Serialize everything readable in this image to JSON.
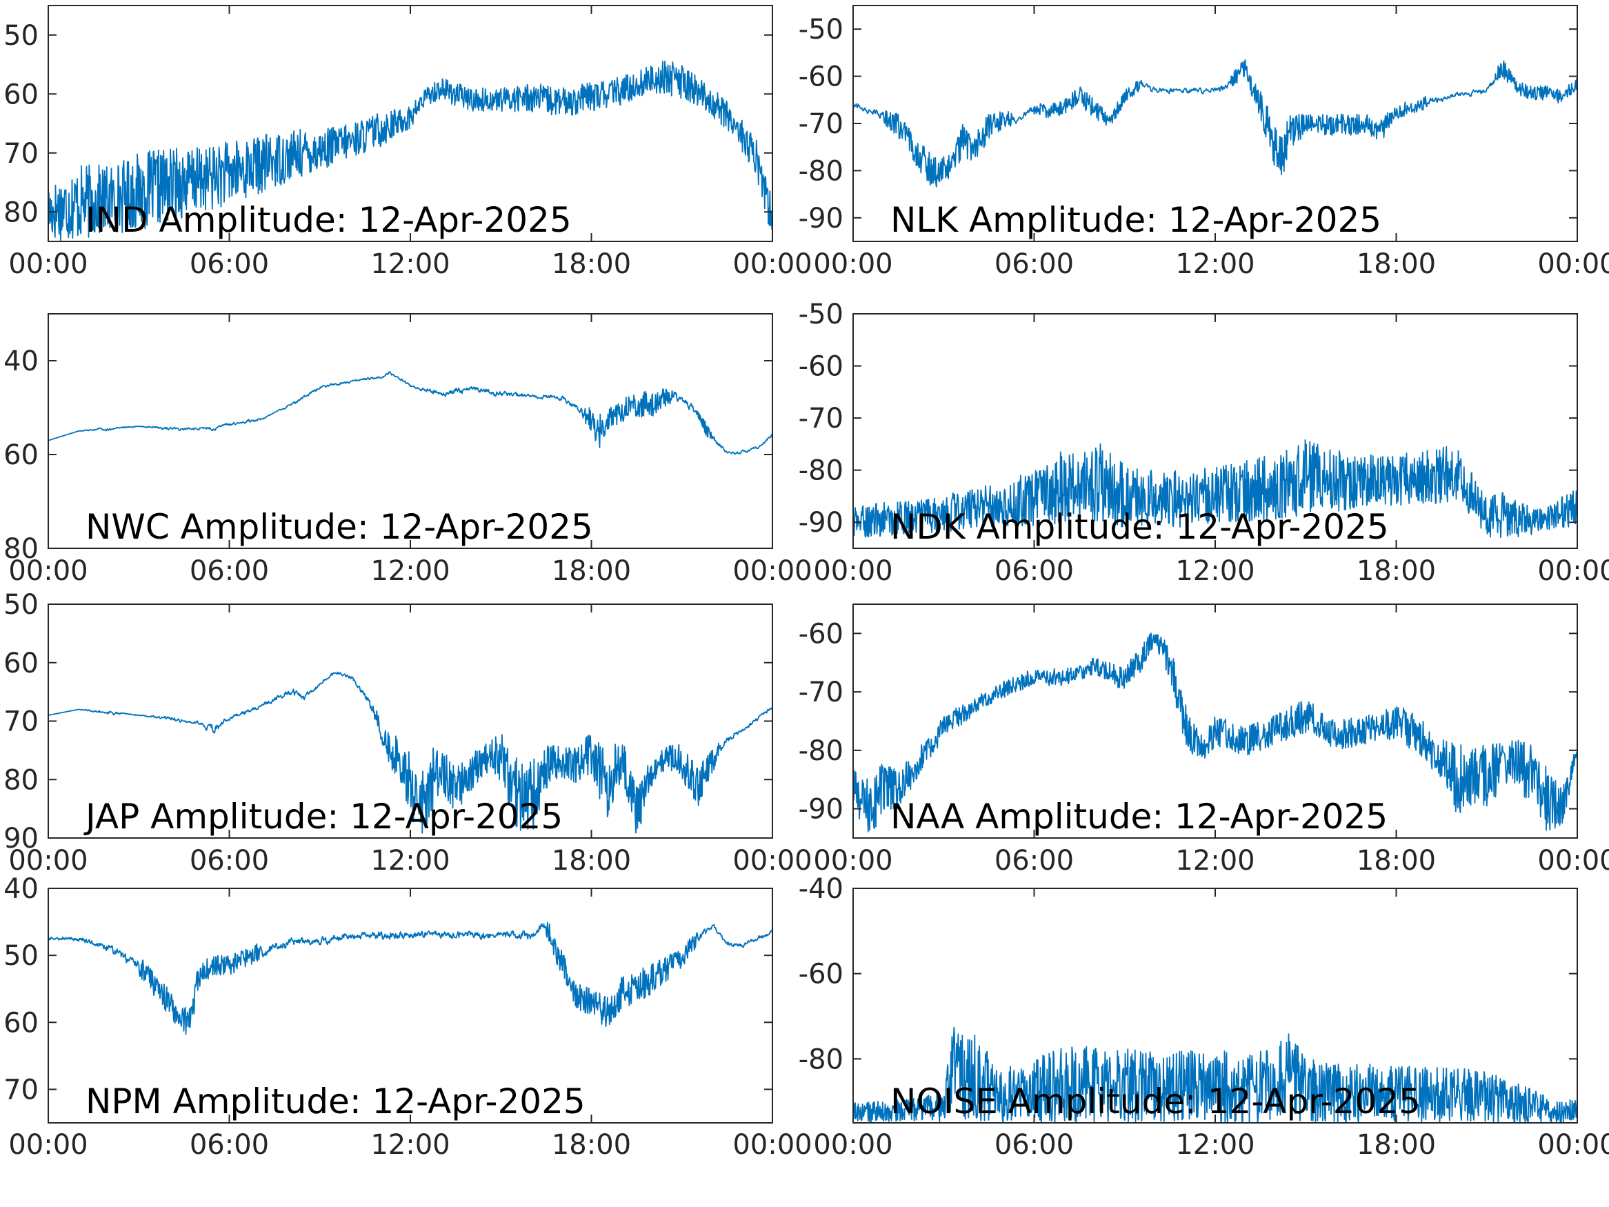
{
  "trace_color": "#0072BD",
  "x_tick_labels": [
    "00:00",
    "06:00",
    "12:00",
    "18:00",
    "00:00"
  ],
  "chart_data": [
    {
      "type": "line",
      "station": "IND",
      "annotation": "IND Amplitude: 12-Apr-2025",
      "x_unit": "hours UTC",
      "xlim": [
        0,
        24
      ],
      "ylim": [
        -85,
        -45
      ],
      "y_ticks": [
        -50,
        -60,
        -70,
        -80
      ],
      "y_tick_labels": [
        "50",
        "60",
        "70",
        "80"
      ],
      "x": [
        0,
        1,
        2,
        3,
        4,
        5,
        6,
        7,
        8,
        9,
        10,
        11,
        12,
        12.5,
        13,
        14,
        15,
        16,
        17,
        18,
        19,
        20,
        20.5,
        21,
        21.5,
        22,
        22.5,
        23,
        23.5,
        24
      ],
      "series": [
        {
          "upper": [
            -75,
            -72,
            -72,
            -70,
            -69,
            -69,
            -68,
            -67,
            -66,
            -66,
            -65,
            -63,
            -62,
            -59,
            -57,
            -59,
            -59,
            -58,
            -59,
            -58,
            -57,
            -55,
            -54,
            -55,
            -57,
            -59,
            -61,
            -64,
            -68,
            -78
          ],
          "lower": [
            -85,
            -85,
            -84,
            -83,
            -82,
            -80,
            -79,
            -77,
            -75,
            -73,
            -71,
            -69,
            -66,
            -62,
            -61,
            -63,
            -63,
            -63,
            -64,
            -63,
            -62,
            -60,
            -60,
            -61,
            -62,
            -64,
            -66,
            -70,
            -75,
            -85
          ]
        }
      ]
    },
    {
      "type": "line",
      "station": "NLK",
      "annotation": "NLK Amplitude: 12-Apr-2025",
      "x_unit": "hours UTC",
      "xlim": [
        0,
        24
      ],
      "ylim": [
        -95,
        -45
      ],
      "y_ticks": [
        -50,
        -60,
        -70,
        -80,
        -90
      ],
      "y_tick_labels": [
        "-50",
        "-60",
        "-70",
        "-80",
        "-90"
      ],
      "x": [
        0,
        1,
        1.5,
        2,
        2.5,
        3,
        3.3,
        3.6,
        4,
        4.5,
        5,
        5.5,
        6,
        6.5,
        7,
        7.5,
        8,
        8.5,
        9,
        9.5,
        10,
        11,
        12,
        12.5,
        13,
        13.5,
        14,
        14.2,
        14.5,
        15,
        16,
        17,
        17.5,
        18,
        19,
        20,
        21,
        21.5,
        22,
        22.5,
        23,
        23.5,
        24
      ],
      "series": [
        {
          "upper": [
            -65,
            -67,
            -68,
            -72,
            -76,
            -77,
            -76,
            -70,
            -72,
            -68,
            -67,
            -68,
            -65,
            -66,
            -65,
            -62,
            -65,
            -68,
            -63,
            -60,
            -62,
            -62,
            -62,
            -60,
            -55,
            -63,
            -70,
            -72,
            -68,
            -68,
            -68,
            -68,
            -69,
            -66,
            -64,
            -63,
            -62,
            -56,
            -61,
            -62,
            -62,
            -63,
            -60
          ],
          "lower": [
            -67,
            -70,
            -73,
            -78,
            -83,
            -84,
            -80,
            -78,
            -78,
            -74,
            -71,
            -70,
            -68,
            -69,
            -68,
            -66,
            -69,
            -71,
            -66,
            -63,
            -64,
            -64,
            -64,
            -63,
            -60,
            -70,
            -80,
            -82,
            -76,
            -72,
            -73,
            -72,
            -74,
            -69,
            -67,
            -65,
            -64,
            -60,
            -64,
            -65,
            -65,
            -66,
            -63
          ]
        }
      ]
    },
    {
      "type": "line",
      "station": "NWC",
      "annotation": "NWC Amplitude: 12-Apr-2025",
      "x_unit": "hours UTC",
      "xlim": [
        0,
        24
      ],
      "ylim": [
        -80,
        -30
      ],
      "y_ticks": [
        -40,
        -60,
        -80
      ],
      "y_tick_labels": [
        "40",
        "60",
        "80"
      ],
      "x": [
        0,
        1,
        2,
        3,
        4,
        5,
        5.5,
        6,
        7,
        7.5,
        8,
        8.5,
        9,
        10,
        11,
        11.3,
        12,
        13,
        14,
        15,
        16,
        17,
        17.5,
        18,
        18.2,
        18.5,
        19,
        20,
        20.5,
        21,
        21.5,
        22,
        22.5,
        23,
        23.5,
        24
      ],
      "series": [
        {
          "upper": [
            -57,
            -55,
            -54,
            -54,
            -54,
            -54,
            -54,
            -53,
            -52,
            -51,
            -49,
            -47,
            -45,
            -44,
            -43,
            -42,
            -45,
            -46,
            -45,
            -46,
            -47,
            -47,
            -49,
            -50,
            -52,
            -50,
            -48,
            -46,
            -46,
            -47,
            -50,
            -55,
            -59,
            -59,
            -58,
            -55
          ],
          "lower": [
            -57,
            -55,
            -55,
            -54,
            -55,
            -55,
            -55,
            -54,
            -53,
            -51,
            -50,
            -48,
            -46,
            -45,
            -44,
            -43,
            -46,
            -48,
            -47,
            -48,
            -48,
            -49,
            -51,
            -55,
            -60,
            -55,
            -53,
            -52,
            -50,
            -49,
            -53,
            -58,
            -60,
            -60,
            -59,
            -56
          ]
        }
      ]
    },
    {
      "type": "line",
      "station": "NDK",
      "annotation": "NDK Amplitude: 12-Apr-2025",
      "x_unit": "hours UTC",
      "xlim": [
        0,
        24
      ],
      "ylim": [
        -95,
        -50
      ],
      "y_ticks": [
        -50,
        -60,
        -70,
        -80,
        -90
      ],
      "y_tick_labels": [
        "-50",
        "-60",
        "-70",
        "-80",
        "-90"
      ],
      "x": [
        0,
        1,
        2,
        3,
        4,
        5,
        6,
        7,
        8,
        9,
        10,
        11,
        12,
        13,
        14,
        15,
        16,
        17,
        18,
        19,
        20,
        20.5,
        21,
        21.5,
        22,
        23,
        24
      ],
      "series": [
        {
          "upper": [
            -87,
            -86,
            -86,
            -85,
            -83,
            -82,
            -80,
            -76,
            -74,
            -79,
            -80,
            -80,
            -79,
            -78,
            -77,
            -74,
            -76,
            -77,
            -77,
            -76,
            -75,
            -80,
            -85,
            -84,
            -86,
            -87,
            -83
          ],
          "lower": [
            -93,
            -93,
            -92,
            -92,
            -91,
            -91,
            -91,
            -90,
            -90,
            -91,
            -91,
            -91,
            -90,
            -90,
            -90,
            -89,
            -88,
            -87,
            -87,
            -87,
            -86,
            -89,
            -93,
            -93,
            -93,
            -92,
            -91
          ]
        }
      ]
    },
    {
      "type": "line",
      "station": "JAP",
      "annotation": "JAP Amplitude: 12-Apr-2025",
      "x_unit": "hours UTC",
      "xlim": [
        0,
        24
      ],
      "ylim": [
        -90,
        -50
      ],
      "y_ticks": [
        -50,
        -60,
        -70,
        -80,
        -90
      ],
      "y_tick_labels": [
        "50",
        "60",
        "70",
        "80",
        "90"
      ],
      "x": [
        0,
        1,
        2,
        3,
        4,
        5,
        5.5,
        6,
        7,
        8,
        8.5,
        9,
        9.5,
        10,
        10.5,
        11,
        11.5,
        12,
        12.3,
        12.7,
        13,
        13.5,
        14,
        14.5,
        15,
        15.5,
        16,
        16.5,
        17,
        17.5,
        18,
        18.5,
        19,
        19.5,
        20,
        20.5,
        21,
        21.5,
        22,
        22.5,
        23,
        23.5,
        24
      ],
      "series": [
        {
          "upper": [
            -69,
            -68,
            -68,
            -69,
            -69,
            -70,
            -70,
            -69,
            -67,
            -64,
            -65,
            -63,
            -61,
            -62,
            -65,
            -69,
            -72,
            -75,
            -80,
            -74,
            -74,
            -78,
            -76,
            -73,
            -72,
            -76,
            -77,
            -74,
            -74,
            -74,
            -72,
            -75,
            -73,
            -79,
            -77,
            -74,
            -74,
            -78,
            -75,
            -72,
            -71,
            -69,
            -67
          ],
          "lower": [
            -69,
            -68,
            -69,
            -69,
            -70,
            -71,
            -73,
            -70,
            -68,
            -66,
            -67,
            -64,
            -62,
            -63,
            -67,
            -73,
            -80,
            -86,
            -90,
            -88,
            -82,
            -86,
            -82,
            -79,
            -81,
            -89,
            -90,
            -82,
            -80,
            -81,
            -79,
            -87,
            -80,
            -90,
            -82,
            -78,
            -80,
            -85,
            -79,
            -74,
            -72,
            -70,
            -68
          ]
        }
      ]
    },
    {
      "type": "line",
      "station": "NAA",
      "annotation": "NAA Amplitude: 12-Apr-2025",
      "x_unit": "hours UTC",
      "xlim": [
        0,
        24
      ],
      "ylim": [
        -95,
        -55
      ],
      "y_ticks": [
        -60,
        -70,
        -80,
        -90
      ],
      "y_tick_labels": [
        "-60",
        "-70",
        "-80",
        "-90"
      ],
      "x": [
        0,
        0.5,
        1,
        1.5,
        2,
        2.5,
        3,
        4,
        5,
        6,
        7,
        8,
        9,
        9.5,
        10,
        10.5,
        11,
        11.5,
        12,
        13,
        14,
        15,
        16,
        17,
        18,
        19,
        19.5,
        20,
        21,
        22,
        22.5,
        23,
        23.5,
        24
      ],
      "series": [
        {
          "upper": [
            -83,
            -85,
            -81,
            -84,
            -80,
            -78,
            -74,
            -71,
            -68,
            -66,
            -66,
            -64,
            -66,
            -62,
            -59,
            -62,
            -72,
            -77,
            -74,
            -76,
            -74,
            -71,
            -75,
            -74,
            -72,
            -75,
            -78,
            -79,
            -79,
            -78,
            -79,
            -83,
            -86,
            -79
          ],
          "lower": [
            -90,
            -95,
            -92,
            -90,
            -86,
            -82,
            -78,
            -74,
            -71,
            -69,
            -69,
            -67,
            -70,
            -67,
            -62,
            -68,
            -80,
            -82,
            -80,
            -81,
            -79,
            -77,
            -80,
            -79,
            -78,
            -82,
            -86,
            -91,
            -90,
            -86,
            -90,
            -94,
            -94,
            -81
          ]
        }
      ]
    },
    {
      "type": "line",
      "station": "NPM",
      "annotation": "NPM Amplitude: 12-Apr-2025",
      "x_unit": "hours UTC",
      "xlim": [
        0,
        24
      ],
      "ylim": [
        -75,
        -40
      ],
      "y_ticks": [
        -40,
        -50,
        -60,
        -70
      ],
      "y_tick_labels": [
        "40",
        "50",
        "60",
        "70"
      ],
      "x": [
        0,
        1,
        2,
        3,
        4,
        4.5,
        4.7,
        5,
        5.5,
        6,
        7,
        8,
        9,
        10,
        11,
        12,
        13,
        14,
        15,
        16,
        16.5,
        17,
        17.5,
        18,
        18.5,
        19,
        20,
        21,
        21.5,
        22,
        22.5,
        23,
        24
      ],
      "series": [
        {
          "upper": [
            -47,
            -47,
            -48,
            -50,
            -55,
            -58,
            -56,
            -51,
            -50,
            -50,
            -48,
            -47,
            -47,
            -46,
            -46,
            -46,
            -46,
            -46,
            -46,
            -46,
            -44,
            -49,
            -54,
            -55,
            -56,
            -53,
            -51,
            -49,
            -46,
            -45,
            -48,
            -48,
            -46
          ],
          "lower": [
            -48,
            -48,
            -50,
            -53,
            -59,
            -62,
            -62,
            -55,
            -53,
            -53,
            -51,
            -49,
            -49,
            -48,
            -48,
            -48,
            -48,
            -48,
            -48,
            -48,
            -47,
            -53,
            -58,
            -59,
            -61,
            -58,
            -56,
            -52,
            -49,
            -46,
            -49,
            -49,
            -47
          ]
        }
      ]
    },
    {
      "type": "line",
      "station": "NOISE",
      "annotation": "NOISE Amplitude: 12-Apr-2025",
      "x_unit": "hours UTC",
      "xlim": [
        0,
        24
      ],
      "ylim": [
        -95,
        -40
      ],
      "y_ticks": [
        -40,
        -60,
        -80
      ],
      "y_tick_labels": [
        "-40",
        "-60",
        "-80"
      ],
      "x": [
        0,
        1,
        2,
        3,
        3.3,
        3.6,
        4,
        4.5,
        4.8,
        5,
        6,
        7,
        8,
        9,
        10,
        11,
        12,
        13,
        14,
        14.3,
        14.7,
        15,
        16,
        17,
        18,
        19,
        20,
        21,
        22,
        23,
        23.5,
        24
      ],
      "series": [
        {
          "upper": [
            -90,
            -90,
            -89,
            -88,
            -72,
            -74,
            -74,
            -74,
            -84,
            -82,
            -80,
            -77,
            -77,
            -77,
            -78,
            -78,
            -78,
            -78,
            -78,
            -73,
            -76,
            -80,
            -81,
            -81,
            -81,
            -82,
            -82,
            -83,
            -85,
            -89,
            -90,
            -89
          ],
          "lower": [
            -95,
            -95,
            -95,
            -95,
            -93,
            -95,
            -95,
            -95,
            -95,
            -95,
            -95,
            -95,
            -95,
            -95,
            -95,
            -95,
            -95,
            -95,
            -95,
            -93,
            -95,
            -95,
            -95,
            -95,
            -95,
            -95,
            -95,
            -95,
            -95,
            -95,
            -95,
            -95
          ]
        }
      ]
    }
  ]
}
